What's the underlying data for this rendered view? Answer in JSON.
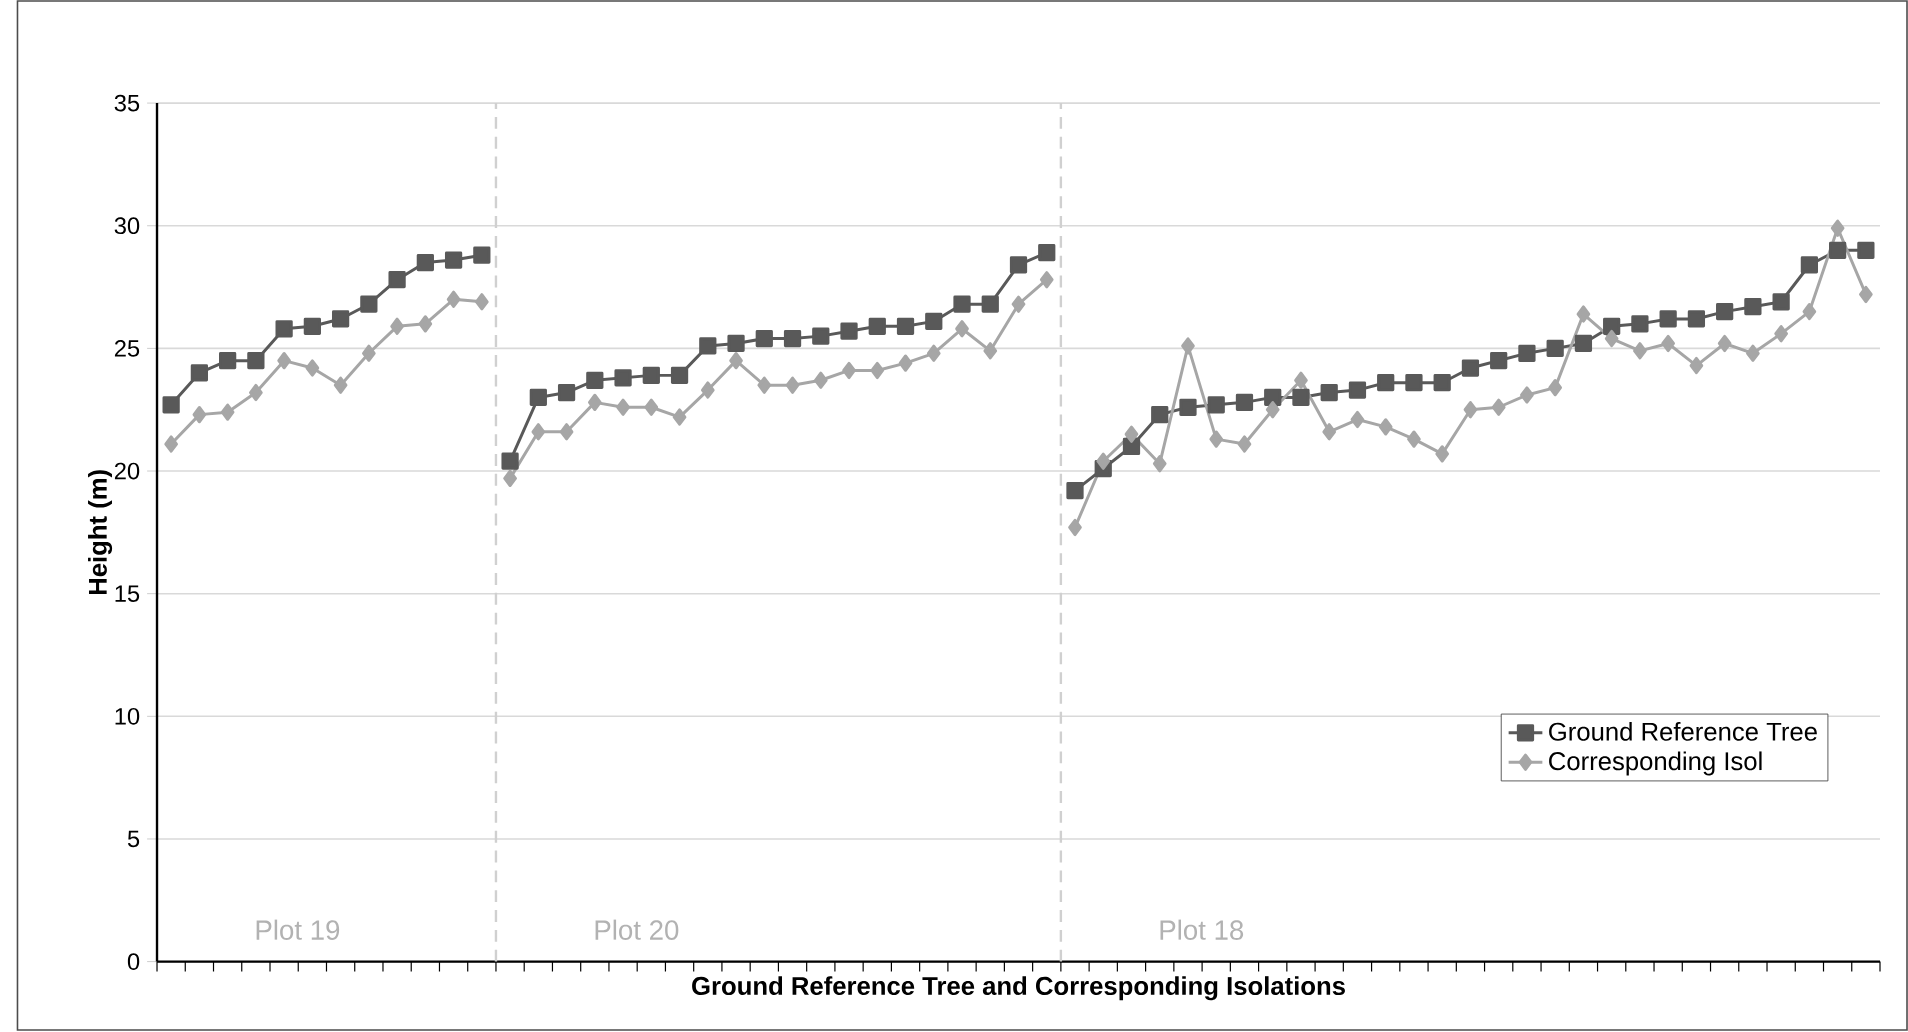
{
  "chart_data": {
    "type": "line",
    "xlabel": "**Ground Reference Tree and Corresponding Isolations**",
    "ylabel": "**Height (m)**",
    "categories": [
      null,
      null,
      null,
      null,
      null,
      null,
      null,
      null,
      null,
      null,
      null,
      null,
      null,
      null,
      null,
      null,
      null,
      null,
      null,
      null,
      null,
      null,
      null,
      null,
      null,
      null,
      null,
      null,
      null,
      null,
      null,
      null,
      null,
      null,
      null,
      null,
      null,
      null,
      null,
      null,
      null,
      null,
      null,
      null,
      null,
      null,
      null,
      null,
      null,
      null,
      null,
      null,
      null,
      null,
      null,
      null,
      null,
      null,
      null,
      null,
      null
    ],
    "series": [
      {
        "name": "Ground Reference Tree",
        "color": "#595959",
        "marker": "square",
        "values": [
          22.7,
          24.0,
          24.5,
          24.5,
          25.8,
          25.9,
          26.2,
          26.8,
          27.8,
          28.5,
          28.6,
          28.8,
          20.4,
          23.0,
          23.2,
          23.7,
          23.8,
          23.9,
          23.9,
          25.1,
          25.2,
          25.4,
          25.4,
          25.5,
          25.7,
          25.9,
          25.9,
          26.1,
          26.8,
          26.8,
          28.4,
          28.9,
          19.2,
          20.1,
          21.0,
          22.3,
          22.6,
          22.7,
          22.8,
          23.0,
          23.0,
          23.2,
          23.3,
          23.6,
          23.6,
          23.6,
          24.2,
          24.5,
          24.8,
          25.0,
          25.2,
          25.9,
          26.0,
          26.2,
          26.2,
          26.5,
          26.7,
          26.9,
          28.4,
          29.0,
          29.0
        ]
      },
      {
        "name": "Corresponding Isol",
        "color": "#a6a6a6",
        "marker": "diamond",
        "values": [
          21.1,
          22.3,
          22.4,
          23.2,
          24.5,
          24.2,
          23.5,
          24.8,
          25.9,
          26.0,
          27.0,
          26.9,
          19.7,
          21.6,
          21.6,
          22.8,
          22.6,
          22.6,
          22.2,
          23.3,
          24.5,
          23.5,
          23.5,
          23.7,
          24.1,
          24.1,
          24.4,
          24.8,
          25.8,
          24.9,
          26.8,
          27.8,
          17.7,
          20.4,
          21.5,
          20.3,
          25.1,
          21.3,
          21.1,
          22.5,
          23.7,
          21.6,
          22.1,
          21.8,
          21.3,
          20.7,
          22.5,
          22.6,
          23.1,
          23.4,
          26.4,
          25.4,
          24.9,
          25.2,
          24.3,
          25.2,
          24.8,
          25.6,
          26.5,
          29.9,
          27.2
        ]
      }
    ],
    "ylim": [
      0,
      35
    ],
    "yticks": [
      0,
      5,
      10,
      15,
      20,
      25,
      30,
      35
    ],
    "grid": "y",
    "legend": "bottom right",
    "line_style": "solid",
    "annotations": [
      "Plot 19",
      "Plot 20",
      "Plot 18"
    ]
  }
}
